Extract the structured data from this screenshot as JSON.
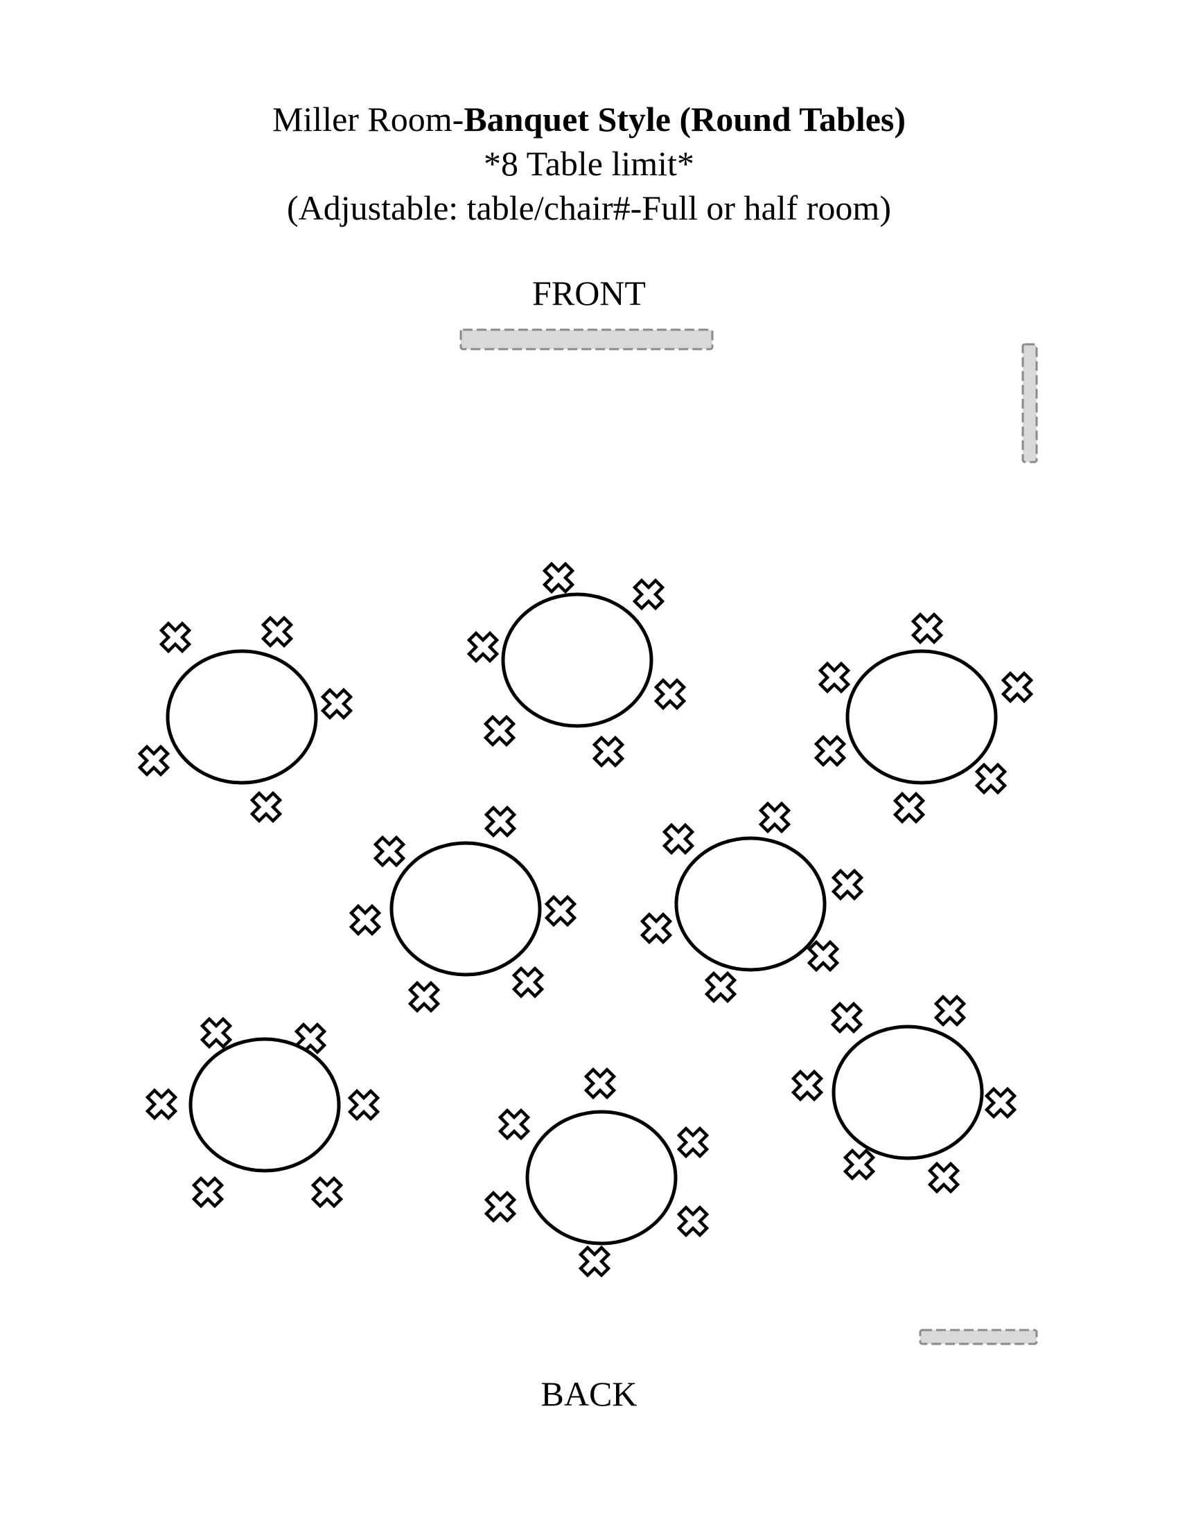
{
  "title": {
    "prefix": "Miller Room-",
    "bold": "Banquet Style (Round Tables)"
  },
  "subtitle_limit": "*8 Table limit*",
  "subtitle_adjust": "(Adjustable: table/chair#-Full or half room)",
  "front_label": "FRONT",
  "back_label": "BACK",
  "colors": {
    "line": "#000000",
    "fixture_fill": "#d9d9d9",
    "fixture_stroke": "#8a8a8a"
  },
  "icons": {
    "chair": "x-mark-icon",
    "table": "circle-outline"
  },
  "tables": [
    {
      "id": "table-1",
      "chairs": 5
    },
    {
      "id": "table-2",
      "chairs": 6
    },
    {
      "id": "table-3",
      "chairs": 6
    },
    {
      "id": "table-4",
      "chairs": 6
    },
    {
      "id": "table-5",
      "chairs": 6
    },
    {
      "id": "table-6",
      "chairs": 6
    },
    {
      "id": "table-7",
      "chairs": 6
    },
    {
      "id": "table-8",
      "chairs": 6
    }
  ]
}
